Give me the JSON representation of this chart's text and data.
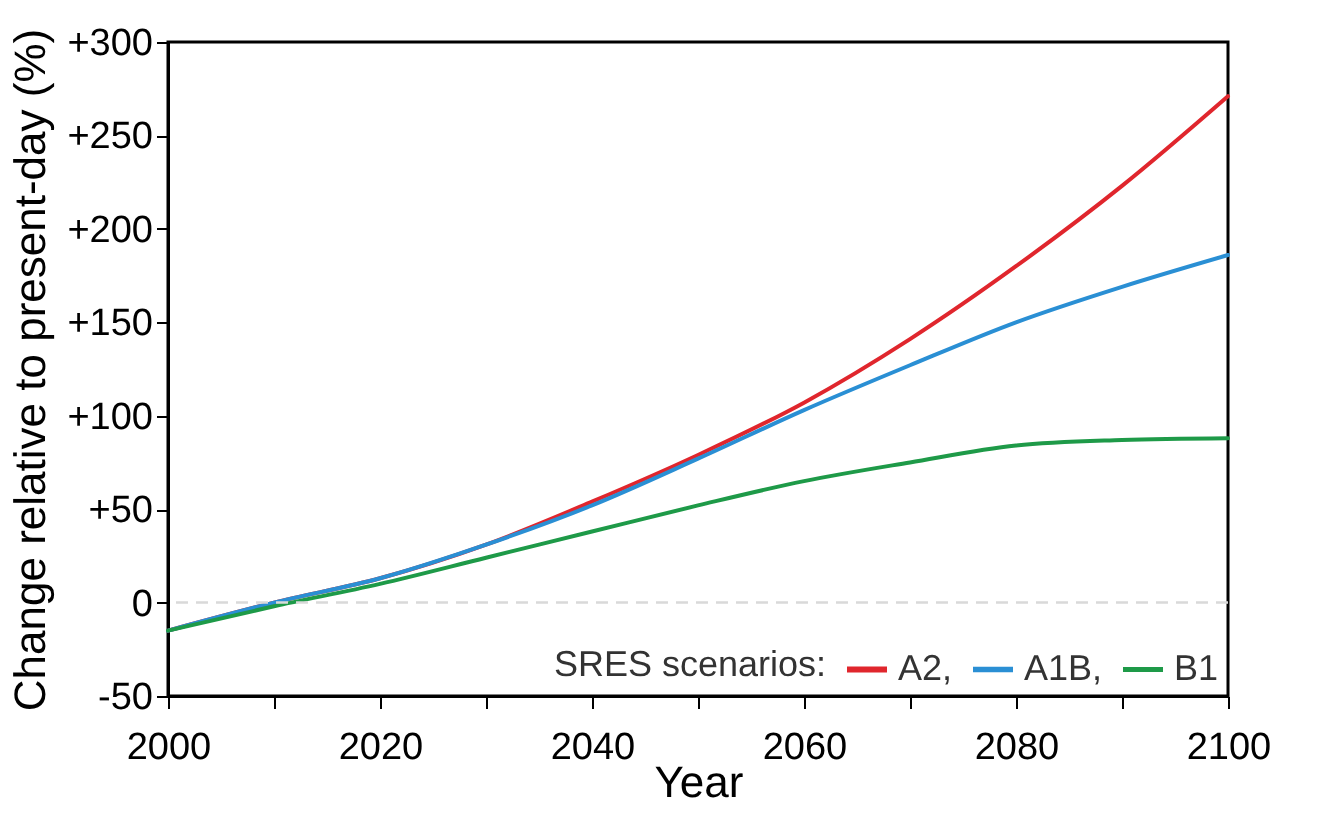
{
  "chart_data": {
    "type": "line",
    "xlabel": "Year",
    "ylabel": "Change relative to present-day (%)",
    "legend_title": "SRES scenarios:",
    "x": [
      2000,
      2010,
      2020,
      2030,
      2040,
      2050,
      2060,
      2070,
      2080,
      2090,
      2100
    ],
    "series": [
      {
        "name": "A2,",
        "color": "#e0262d",
        "values": [
          -15,
          0,
          13,
          31,
          54,
          79,
          107,
          141,
          180,
          223,
          271
        ]
      },
      {
        "name": "A1B,",
        "color": "#2a8fd4",
        "values": [
          -15,
          0,
          13,
          31,
          52,
          77,
          103,
          127,
          150,
          169,
          186
        ]
      },
      {
        "name": "B1",
        "color": "#1e9a48",
        "values": [
          -15,
          -2,
          10,
          24,
          38,
          52,
          65,
          75,
          84,
          87,
          88
        ]
      }
    ],
    "xlim": [
      2000,
      2100
    ],
    "xticks": [
      2000,
      {
        "value": 2010,
        "label": null
      },
      2020,
      {
        "value": 2030,
        "label": null
      },
      2040,
      {
        "value": 2050,
        "label": null
      },
      2060,
      {
        "value": 2070,
        "label": null
      },
      2080,
      {
        "value": 2090,
        "label": null
      },
      2100
    ],
    "ylim": [
      -50,
      300
    ],
    "yticks": [
      -50,
      0,
      {
        "value": 50,
        "label": "+50"
      },
      {
        "value": 100,
        "label": "+100"
      },
      {
        "value": 150,
        "label": "+150"
      },
      {
        "value": 200,
        "label": "+200"
      },
      {
        "value": 250,
        "label": "+250"
      },
      {
        "value": 300,
        "label": "+300"
      }
    ],
    "ref_lines": [
      {
        "axis": "y",
        "value": 0,
        "label": null,
        "color": "#d9d9d9",
        "line_style": "dashed"
      }
    ],
    "grid": false,
    "legend": "bottom right",
    "line_style": "solid",
    "marker": "none"
  }
}
